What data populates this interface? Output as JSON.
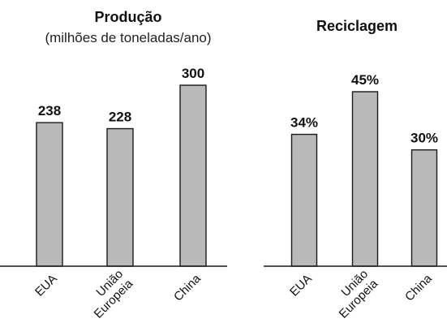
{
  "chart_data": [
    {
      "type": "bar",
      "title": "Produção",
      "subtitle": "(milhões de toneladas/ano)",
      "categories": [
        [
          "EUA"
        ],
        [
          "União",
          "Europeia"
        ],
        [
          "China"
        ]
      ],
      "values": [
        238,
        228,
        300
      ],
      "value_labels": [
        "238",
        "228",
        "300"
      ],
      "ylim": [
        0,
        300
      ],
      "grid": false,
      "bar_color": "#b9b9b9"
    },
    {
      "type": "bar",
      "title": "Reciclagem",
      "categories": [
        [
          "EUA"
        ],
        [
          "União",
          "Europeia"
        ],
        [
          "China"
        ]
      ],
      "values": [
        34,
        45,
        30
      ],
      "value_labels": [
        "34%",
        "45%",
        "30%"
      ],
      "ylim": [
        0,
        45
      ],
      "grid": false,
      "bar_color": "#b9b9b9"
    }
  ]
}
